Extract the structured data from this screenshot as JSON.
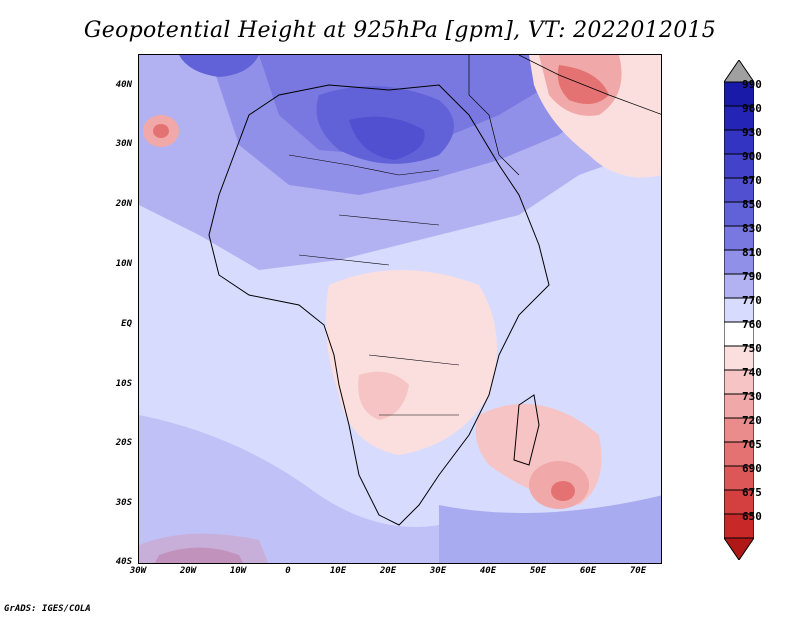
{
  "title": "Geopotential Height at 925hPa [gpm], VT: 2022012015",
  "footer": "GrADS: IGES/COLA",
  "axes": {
    "lat_labels": [
      "40N",
      "30N",
      "20N",
      "10N",
      "EQ",
      "10S",
      "20S",
      "30S",
      "40S"
    ],
    "lon_labels": [
      "30W",
      "20W",
      "10W",
      "0",
      "10E",
      "20E",
      "30E",
      "40E",
      "50E",
      "60E",
      "70E"
    ]
  },
  "colorbar": {
    "levels": [
      "990",
      "960",
      "930",
      "900",
      "870",
      "850",
      "830",
      "810",
      "790",
      "770",
      "760",
      "750",
      "740",
      "730",
      "720",
      "705",
      "690",
      "675",
      "650"
    ],
    "colors": [
      "#1a1aa8",
      "#2424b6",
      "#3434c2",
      "#4242ca",
      "#5050d0",
      "#6262d8",
      "#7878e0",
      "#9090e8",
      "#b2b2f2",
      "#d7dcff",
      "#ffffff",
      "#fbdede",
      "#f6c4c4",
      "#f0a8a8",
      "#ea8c8c",
      "#e47272",
      "#dc5858",
      "#d44040",
      "#c82828"
    ]
  }
}
